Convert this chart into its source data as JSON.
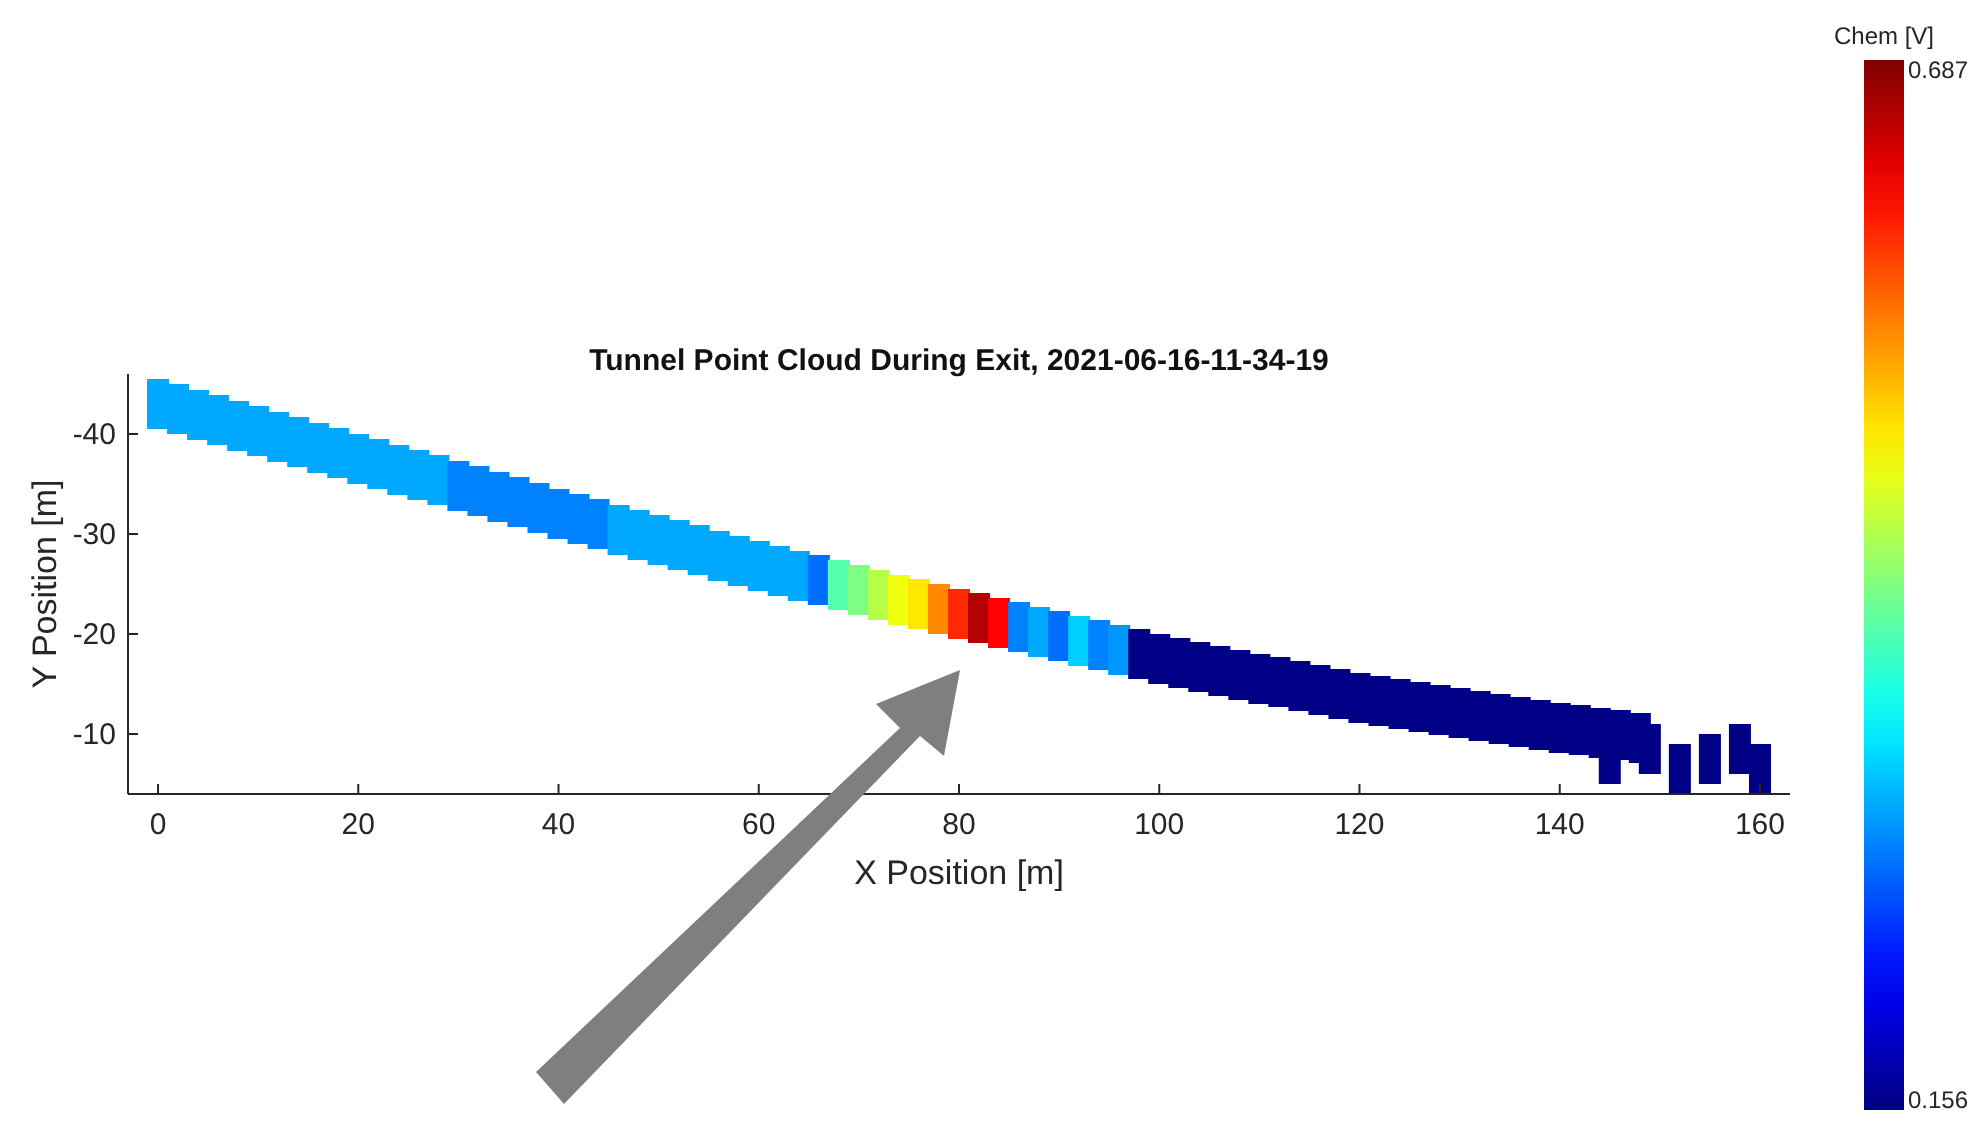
{
  "chart_data": {
    "type": "scatter",
    "title": "Tunnel Point Cloud During Exit, 2021-06-16-11-34-19",
    "xlabel": "X Position [m]",
    "ylabel": "Y Position [m]",
    "clabel": "Chem [V]",
    "x": [
      0,
      2,
      4,
      6,
      8,
      10,
      12,
      14,
      16,
      18,
      20,
      22,
      24,
      26,
      28,
      30,
      32,
      34,
      36,
      38,
      40,
      42,
      44,
      46,
      48,
      50,
      52,
      54,
      56,
      58,
      60,
      62,
      64,
      66,
      68,
      70,
      72,
      74,
      76,
      78,
      80,
      82,
      84,
      86,
      88,
      90,
      92,
      94,
      96,
      98,
      100,
      102,
      104,
      106,
      108,
      110,
      112,
      114,
      116,
      118,
      120,
      122,
      124,
      126,
      128,
      130,
      132,
      134,
      136,
      138,
      140,
      142,
      144,
      146,
      148,
      145,
      149,
      152,
      155,
      158,
      160
    ],
    "values": [
      -43.0,
      -42.5,
      -41.9,
      -41.4,
      -40.8,
      -40.3,
      -39.7,
      -39.2,
      -38.6,
      -38.1,
      -37.5,
      -37.0,
      -36.4,
      -35.9,
      -35.4,
      -34.8,
      -34.3,
      -33.7,
      -33.2,
      -32.6,
      -32.0,
      -31.5,
      -31.0,
      -30.4,
      -29.9,
      -29.4,
      -28.9,
      -28.4,
      -27.8,
      -27.3,
      -26.8,
      -26.3,
      -25.8,
      -25.4,
      -24.9,
      -24.4,
      -23.9,
      -23.4,
      -23.0,
      -22.5,
      -22.0,
      -21.6,
      -21.1,
      -20.7,
      -20.2,
      -19.8,
      -19.3,
      -18.9,
      -18.4,
      -18.0,
      -17.5,
      -17.1,
      -16.7,
      -16.3,
      -15.9,
      -15.5,
      -15.2,
      -14.8,
      -14.4,
      -14.0,
      -13.6,
      -13.3,
      -13.0,
      -12.7,
      -12.4,
      -12.1,
      -11.8,
      -11.5,
      -11.2,
      -10.9,
      -10.6,
      -10.4,
      -10.1,
      -9.9,
      -9.6,
      -7.5,
      -8.5,
      -6.5,
      -7.5,
      -8.5,
      -6.5
    ],
    "cvalues": [
      0.31,
      0.31,
      0.31,
      0.31,
      0.31,
      0.31,
      0.31,
      0.31,
      0.31,
      0.31,
      0.31,
      0.31,
      0.31,
      0.31,
      0.31,
      0.29,
      0.29,
      0.29,
      0.29,
      0.29,
      0.29,
      0.29,
      0.29,
      0.31,
      0.31,
      0.31,
      0.31,
      0.31,
      0.31,
      0.31,
      0.31,
      0.31,
      0.31,
      0.28,
      0.4,
      0.42,
      0.45,
      0.48,
      0.5,
      0.55,
      0.6,
      0.66,
      0.62,
      0.29,
      0.31,
      0.28,
      0.33,
      0.29,
      0.3,
      0.16,
      0.16,
      0.16,
      0.16,
      0.16,
      0.16,
      0.16,
      0.16,
      0.16,
      0.16,
      0.16,
      0.16,
      0.16,
      0.16,
      0.16,
      0.16,
      0.16,
      0.16,
      0.16,
      0.16,
      0.16,
      0.16,
      0.16,
      0.16,
      0.16,
      0.16,
      0.16,
      0.16,
      0.16,
      0.16,
      0.16,
      0.16
    ],
    "xlim": [
      -3,
      163
    ],
    "ylim": [
      -4,
      -46
    ],
    "xticks": [
      0,
      20,
      40,
      60,
      80,
      100,
      120,
      140,
      160
    ],
    "yticks": [
      -40,
      -30,
      -20,
      -10
    ],
    "clim": [
      0.156,
      0.687
    ],
    "cticks": [
      0.156,
      0.687
    ],
    "grid": false
  }
}
